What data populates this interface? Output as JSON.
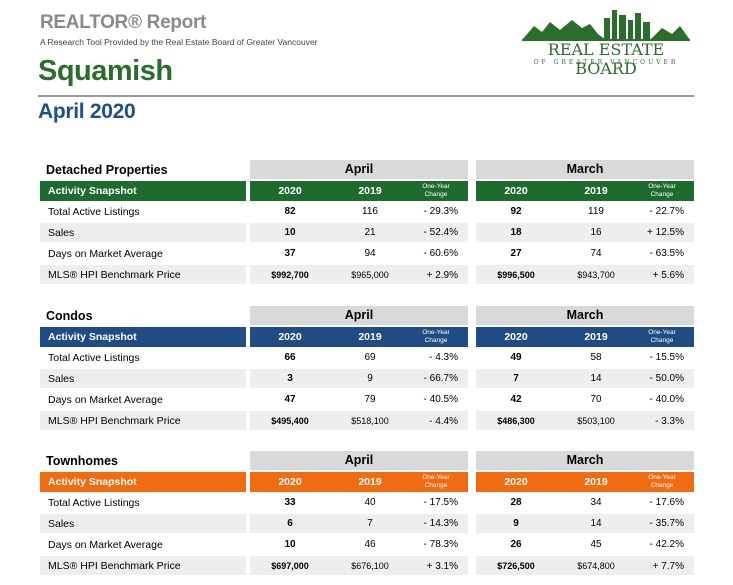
{
  "header": {
    "report_title": "REALTOR® Report",
    "report_subtitle": "A Research Tool Provided by the Real Estate Board of Greater Vancouver",
    "area": "Squamish",
    "period": "April 2020"
  },
  "logo": {
    "name": "REAL ESTATE BOARD",
    "sub": "OF GREATER VANCOUVER",
    "color": "#2b6e2b"
  },
  "columns": {
    "month1": "April",
    "month2": "March",
    "y1": "2020",
    "y2": "2019",
    "change": "One-Year Change",
    "snapshot": "Activity Snapshot"
  },
  "sections": [
    {
      "title": "Detached Properties",
      "color": "#1e6b2e",
      "rows": [
        {
          "label": "Total Active Listings",
          "a20": "82",
          "a19": "116",
          "achg": "- 29.3%",
          "m20": "92",
          "m19": "119",
          "mchg": "- 22.7%"
        },
        {
          "label": "Sales",
          "a20": "10",
          "a19": "21",
          "achg": "- 52.4%",
          "m20": "18",
          "m19": "16",
          "mchg": "+ 12.5%"
        },
        {
          "label": "Days on Market Average",
          "a20": "37",
          "a19": "94",
          "achg": "- 60.6%",
          "m20": "27",
          "m19": "74",
          "mchg": "- 63.5%"
        },
        {
          "label": "MLS® HPI Benchmark Price",
          "a20": "$992,700",
          "a19": "$965,000",
          "achg": "+ 2.9%",
          "m20": "$996,500",
          "m19": "$943,700",
          "mchg": "+ 5.6%"
        }
      ]
    },
    {
      "title": "Condos",
      "color": "#1f4c85",
      "rows": [
        {
          "label": "Total Active Listings",
          "a20": "66",
          "a19": "69",
          "achg": "- 4.3%",
          "m20": "49",
          "m19": "58",
          "mchg": "- 15.5%"
        },
        {
          "label": "Sales",
          "a20": "3",
          "a19": "9",
          "achg": "- 66.7%",
          "m20": "7",
          "m19": "14",
          "mchg": "- 50.0%"
        },
        {
          "label": "Days on Market Average",
          "a20": "47",
          "a19": "79",
          "achg": "- 40.5%",
          "m20": "42",
          "m19": "70",
          "mchg": "- 40.0%"
        },
        {
          "label": "MLS® HPI Benchmark Price",
          "a20": "$495,400",
          "a19": "$518,100",
          "achg": "- 4.4%",
          "m20": "$486,300",
          "m19": "$503,100",
          "mchg": "- 3.3%"
        }
      ]
    },
    {
      "title": "Townhomes",
      "color": "#f26b10",
      "rows": [
        {
          "label": "Total Active Listings",
          "a20": "33",
          "a19": "40",
          "achg": "- 17.5%",
          "m20": "28",
          "m19": "34",
          "mchg": "- 17.6%"
        },
        {
          "label": "Sales",
          "a20": "6",
          "a19": "7",
          "achg": "- 14.3%",
          "m20": "9",
          "m19": "14",
          "mchg": "- 35.7%"
        },
        {
          "label": "Days on Market Average",
          "a20": "10",
          "a19": "46",
          "achg": "- 78.3%",
          "m20": "26",
          "m19": "45",
          "mchg": "- 42.2%"
        },
        {
          "label": "MLS® HPI Benchmark Price",
          "a20": "$697,000",
          "a19": "$676,100",
          "achg": "+ 3.1%",
          "m20": "$726,500",
          "m19": "$674,800",
          "mchg": "+ 7.7%"
        }
      ]
    }
  ]
}
